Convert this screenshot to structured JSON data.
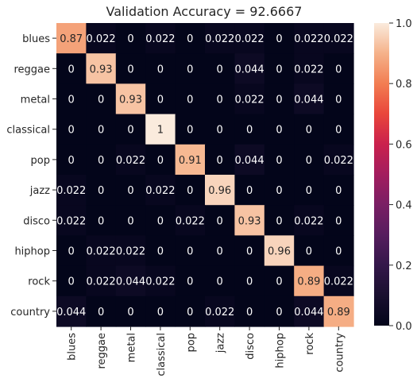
{
  "chart_data": {
    "type": "heatmap",
    "title": "Validation Accuracy  = 92.6667",
    "xlabel": "",
    "ylabel": "",
    "row_labels": [
      "blues",
      "reggae",
      "metal",
      "classical",
      "pop",
      "jazz",
      "disco",
      "hiphop",
      "rock",
      "country"
    ],
    "col_labels": [
      "blues",
      "reggae",
      "metal",
      "classical",
      "pop",
      "jazz",
      "disco",
      "hiphop",
      "rock",
      "country"
    ],
    "values": [
      [
        0.87,
        0.022,
        0,
        0.022,
        0,
        0.022,
        0.022,
        0,
        0.022,
        0.022
      ],
      [
        0,
        0.93,
        0,
        0,
        0,
        0,
        0.044,
        0,
        0.022,
        0
      ],
      [
        0,
        0,
        0.93,
        0,
        0,
        0,
        0.022,
        0,
        0.044,
        0
      ],
      [
        0,
        0,
        0,
        1,
        0,
        0,
        0,
        0,
        0,
        0
      ],
      [
        0,
        0,
        0.022,
        0,
        0.91,
        0,
        0.044,
        0,
        0,
        0.022
      ],
      [
        0.022,
        0,
        0,
        0.022,
        0,
        0.96,
        0,
        0,
        0,
        0
      ],
      [
        0.022,
        0,
        0,
        0,
        0.022,
        0,
        0.93,
        0,
        0.022,
        0
      ],
      [
        0,
        0.022,
        0.022,
        0,
        0,
        0,
        0,
        0.96,
        0,
        0
      ],
      [
        0,
        0.022,
        0.044,
        0.022,
        0,
        0,
        0,
        0,
        0.89,
        0.022
      ],
      [
        0.044,
        0,
        0,
        0,
        0,
        0.022,
        0,
        0,
        0.044,
        0.89
      ]
    ],
    "cell_labels": [
      [
        "0.87",
        "0.022",
        "0",
        "0.022",
        "0",
        "0.022",
        "0.022",
        "0",
        "0.022",
        "0.022"
      ],
      [
        "0",
        "0.93",
        "0",
        "0",
        "0",
        "0",
        "0.044",
        "0",
        "0.022",
        "0"
      ],
      [
        "0",
        "0",
        "0.93",
        "0",
        "0",
        "0",
        "0.022",
        "0",
        "0.044",
        "0"
      ],
      [
        "0",
        "0",
        "0",
        "1",
        "0",
        "0",
        "0",
        "0",
        "0",
        "0"
      ],
      [
        "0",
        "0",
        "0.022",
        "0",
        "0.91",
        "0",
        "0.044",
        "0",
        "0",
        "0.022"
      ],
      [
        "0.022",
        "0",
        "0",
        "0.022",
        "0",
        "0.96",
        "0",
        "0",
        "0",
        "0"
      ],
      [
        "0.022",
        "0",
        "0",
        "0",
        "0.022",
        "0",
        "0.93",
        "0",
        "0.022",
        "0"
      ],
      [
        "0",
        "0.022",
        "0.022",
        "0",
        "0",
        "0",
        "0",
        "0.96",
        "0",
        "0"
      ],
      [
        "0",
        "0.022",
        "0.044",
        "0.022",
        "0",
        "0",
        "0",
        "0",
        "0.89",
        "0.022"
      ],
      [
        "0.044",
        "0",
        "0",
        "0",
        "0",
        "0.022",
        "0",
        "0",
        "0.044",
        "0.89"
      ]
    ],
    "colorbar": {
      "range": [
        0,
        1.0
      ],
      "ticks": [
        0.0,
        0.2,
        0.4,
        0.6,
        0.8,
        1.0
      ],
      "tick_labels": [
        "0.0",
        "0.2",
        "0.4",
        "0.6",
        "0.8",
        "1.0"
      ],
      "colormap": "rocket"
    },
    "grid": false
  }
}
